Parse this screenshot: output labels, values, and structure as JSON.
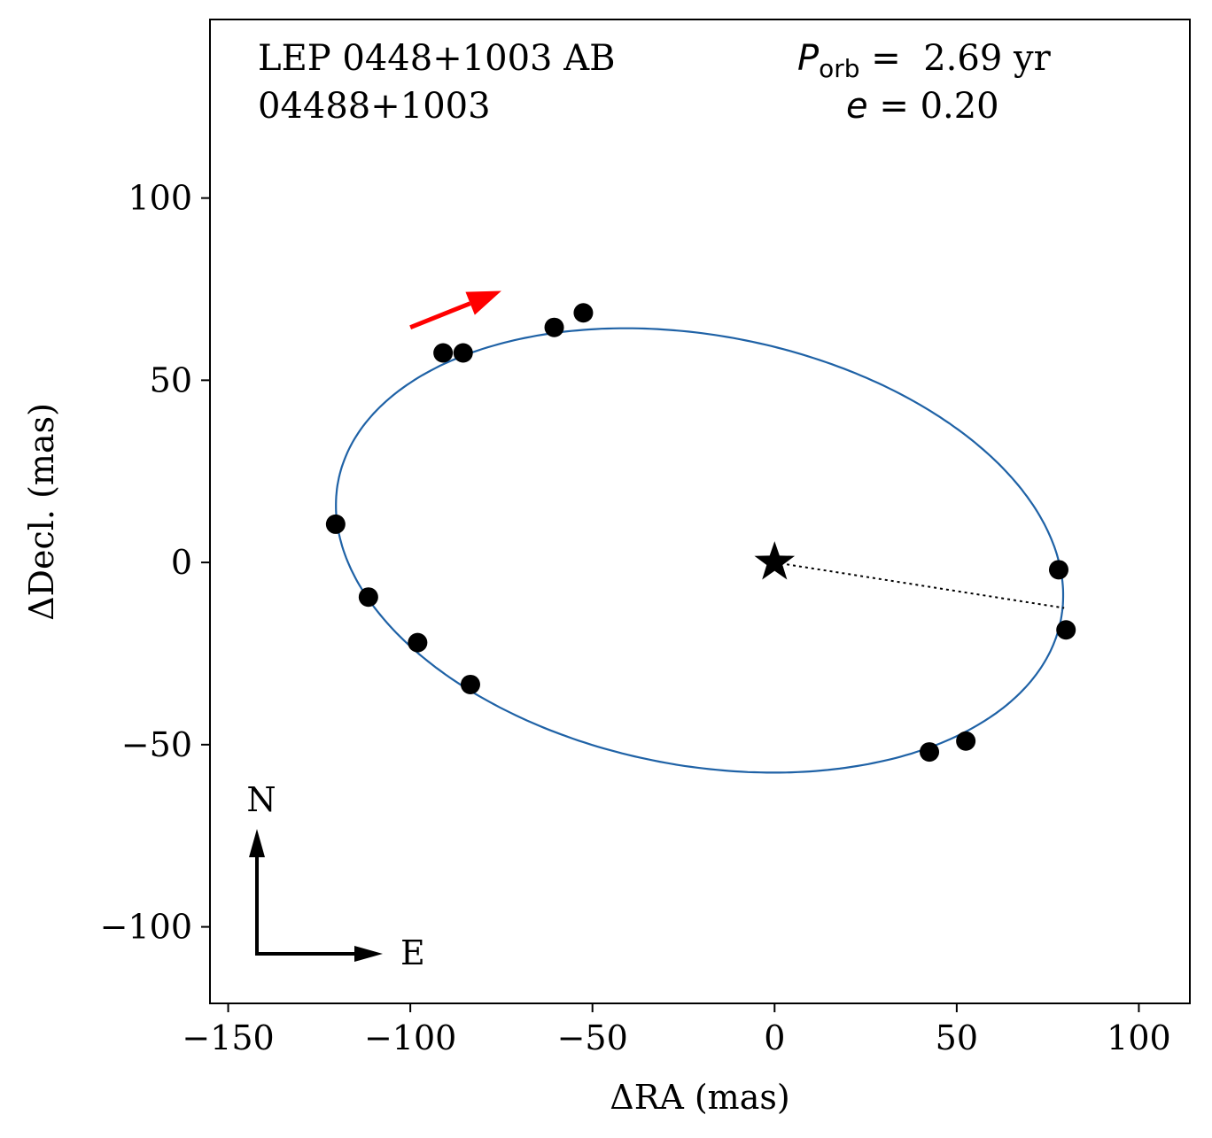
{
  "chart_data": {
    "type": "scatter",
    "title_lines": [
      "LEP 0448+1003 AB",
      "04488+1003"
    ],
    "period": {
      "symbol": "P",
      "subscript": "orb",
      "eq": " =  ",
      "value": "2.69 yr"
    },
    "eccentricity": {
      "symbol": "e",
      "eq": " = ",
      "value": "0.20"
    },
    "xlabel": "ΔRA  (mas)",
    "ylabel": "ΔDecl.  (mas)",
    "xlim": [
      -155,
      114
    ],
    "ylim": [
      -121,
      149
    ],
    "xticks": [
      -150,
      -100,
      -50,
      0,
      50,
      100
    ],
    "xtick_labels": [
      "−150",
      "−100",
      "−50",
      "0",
      "50",
      "100"
    ],
    "yticks": [
      -100,
      -50,
      0,
      50,
      100
    ],
    "ytick_labels": [
      "−100",
      "−50",
      "0",
      "50",
      "100"
    ],
    "observations": [
      {
        "x": -52.5,
        "y": 68.5
      },
      {
        "x": -60.5,
        "y": 64.5
      },
      {
        "x": -85.5,
        "y": 57.5
      },
      {
        "x": -91.0,
        "y": 57.5
      },
      {
        "x": -120.5,
        "y": 10.5
      },
      {
        "x": -111.5,
        "y": -9.5
      },
      {
        "x": -98.0,
        "y": -22.0
      },
      {
        "x": -83.5,
        "y": -33.5
      },
      {
        "x": 42.5,
        "y": -52.0
      },
      {
        "x": 52.5,
        "y": -49.0
      },
      {
        "x": 78.0,
        "y": -2.0
      },
      {
        "x": 80.0,
        "y": -18.5
      }
    ],
    "orbit": {
      "center_x": -20.6,
      "center_y": 3.3,
      "semi_major": 101.0,
      "semi_minor": 59.0,
      "angle_deg": -10.8,
      "color": "#1f62a6"
    },
    "primary": {
      "x": 0,
      "y": 0,
      "marker": "star"
    },
    "periastron_line": {
      "x": 79.5,
      "y": -12.5
    },
    "motion_arrow": {
      "x0": -100,
      "y0": 64.5,
      "x1": -75,
      "y1": 74.5,
      "color": "#ff0000"
    },
    "compass": {
      "north": "N",
      "east": "E"
    }
  }
}
